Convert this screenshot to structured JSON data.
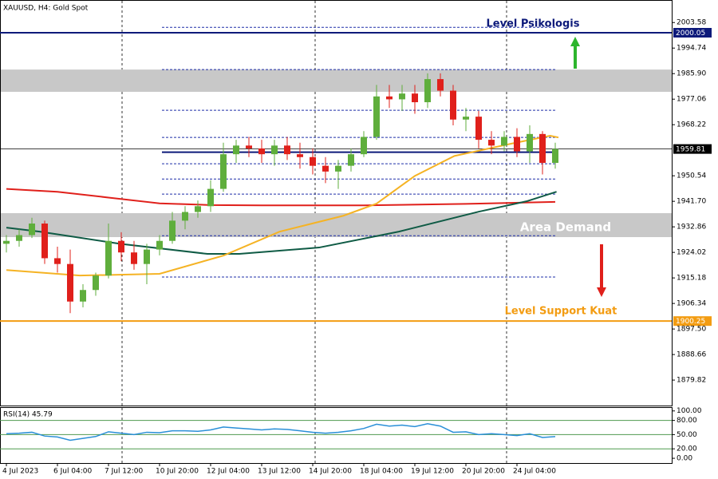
{
  "chart_data": [
    {
      "type": "candlestick",
      "title": "XAUUSD, H4:  Gold Spot",
      "categories": [
        "4 Jul 2023",
        null,
        null,
        null,
        "6 Jul 04:00",
        null,
        null,
        null,
        "7 Jul 12:00",
        null,
        null,
        null,
        "10 Jul 20:00",
        null,
        null,
        null,
        "12 Jul 04:00",
        null,
        null,
        null,
        "13 Jul 12:00",
        null,
        null,
        null,
        "14 Jul 20:00",
        null,
        null,
        null,
        "18 Jul 04:00",
        null,
        null,
        null,
        "19 Jul 12:00",
        null,
        null,
        null,
        "20 Jul 20:00",
        null,
        null,
        null,
        "24 Jul 04:00",
        null,
        null,
        null
      ],
      "open": [
        1927,
        1928,
        1930,
        1934,
        1922,
        1920,
        1907,
        1911,
        1916,
        1928,
        1924,
        1920,
        1925,
        1928,
        1935,
        1938,
        1940,
        1946,
        1958,
        1961,
        1960,
        1958,
        1961,
        1958,
        1957,
        1954,
        1952,
        1954,
        1958,
        1964,
        1978,
        1977,
        1979,
        1976,
        1984,
        1980,
        1970,
        1971,
        1963,
        1961,
        1964,
        1959,
        1965,
        1955
      ],
      "high": [
        1930,
        1932,
        1936,
        1935,
        1926,
        1925,
        1913,
        1917,
        1934,
        1931,
        1928,
        1927,
        1930,
        1938,
        1940,
        1942,
        1949,
        1962,
        1963,
        1964,
        1963,
        1963,
        1964,
        1962,
        1960,
        1957,
        1956,
        1960,
        1966,
        1982,
        1982,
        1982,
        1982,
        1986,
        1986,
        1982,
        1974,
        1973,
        1966,
        1966,
        1967,
        1968,
        1966,
        1962
      ],
      "low": [
        1924,
        1926,
        1929,
        1920,
        1917,
        1903,
        1905,
        1909,
        1915,
        1921,
        1918,
        1913,
        1923,
        1927,
        1932,
        1936,
        1938,
        1945,
        1955,
        1957,
        1955,
        1954,
        1956,
        1953,
        1951,
        1948,
        1946,
        1952,
        1957,
        1963,
        1974,
        1973,
        1972,
        1974,
        1978,
        1968,
        1966,
        1960,
        1958,
        1959,
        1957,
        1955,
        1951,
        1953
      ],
      "close": [
        1928,
        1930,
        1934,
        1922,
        1920,
        1907,
        1911,
        1916,
        1928,
        1924,
        1920,
        1925,
        1928,
        1935,
        1938,
        1940,
        1946,
        1958,
        1961,
        1960,
        1958,
        1961,
        1958,
        1957,
        1954,
        1952,
        1954,
        1958,
        1964,
        1978,
        1977,
        1979,
        1976,
        1984,
        1980,
        1970,
        1971,
        1963,
        1961,
        1964,
        1959,
        1965,
        1955,
        1959.81
      ],
      "up_color": "#5fae3c",
      "down_color": "#e0201b",
      "series": [
        {
          "color": "#e0201b",
          "x": [
            0,
            4,
            8,
            12,
            16,
            20,
            28,
            36,
            43
          ],
          "values": [
            1946,
            1945,
            1943,
            1941,
            1940.4,
            1940.3,
            1940.3,
            1940.8,
            1941.5
          ]
        },
        {
          "color": "#0f5b45",
          "x": [
            0,
            2.6,
            8.9,
            15.75,
            18.25,
            24.5,
            30.75,
            37,
            40.75,
            43.1
          ],
          "values": [
            1932.6,
            1931.2,
            1927,
            1923.5,
            1923.5,
            1925.7,
            1931.2,
            1938.1,
            1941.7,
            1945
          ]
        },
        {
          "color": "#f5b324",
          "x": [
            0,
            5.75,
            12,
            17,
            21.4,
            26.4,
            29,
            32,
            35.1,
            39.5,
            42.6,
            43.25
          ],
          "values": [
            1917.9,
            1916,
            1916.6,
            1922.9,
            1931.2,
            1936.7,
            1940.9,
            1950.5,
            1957.4,
            1961.6,
            1964.4,
            1963.8
          ]
        }
      ],
      "zones": [
        {
          "from": 1979.6,
          "to": 1987.3,
          "color": "#c8c8c8"
        },
        {
          "name": "Area Demand",
          "from": 1929.3,
          "to": 1937.6,
          "color": "#c8c8c8"
        }
      ],
      "dotted_levels": [
        2001.9,
        1987.3,
        1973.2,
        1963.8,
        1954.7,
        1949.4,
        1944.2,
        1929.8,
        1915.5
      ],
      "midline": {
        "value": 1958.7,
        "color": "#0d1a7a"
      },
      "levels": [
        {
          "name": "Level Psikologis",
          "value": 2000.05,
          "color": "#0d1a7a"
        },
        {
          "name": "Level Support Kuat",
          "value": 1900.25,
          "color": "#f39c12"
        }
      ],
      "current_price": 1959.81,
      "ylim": [
        1871,
        2010
      ],
      "yticks": [
        2003.58,
        1994.74,
        {
          "value": 1985.9,
          "label": "1985.90"
        },
        1977.06,
        1968.22,
        1950.54,
        {
          "value": 1941.7,
          "label": "1941.70"
        },
        1932.86,
        1924.02,
        1915.18,
        1906.34,
        {
          "value": 1897.5,
          "label": "1897.50"
        },
        1888.66,
        1879.82
      ]
    },
    {
      "type": "line",
      "title": "RSI(14) 45.79",
      "color": "#2a8fd8",
      "values": [
        52,
        53,
        55,
        47,
        45,
        38,
        42,
        46,
        56,
        53,
        50,
        55,
        54,
        58,
        58,
        57,
        60,
        66,
        64,
        62,
        60,
        62,
        61,
        58,
        55,
        53,
        55,
        58,
        63,
        72,
        68,
        70,
        67,
        73,
        68,
        55,
        56,
        50,
        52,
        50,
        48,
        52,
        44,
        45.79
      ],
      "levels": [
        80,
        50,
        20
      ],
      "level_color": "#4f9a4f",
      "ylim": [
        -10,
        108
      ],
      "yticks": [
        {
          "value": 100,
          "label": "100.00"
        },
        {
          "value": 80,
          "label": "80.00"
        },
        {
          "value": 50,
          "label": "50.00"
        },
        {
          "value": 20,
          "label": "20.00"
        },
        {
          "value": 0,
          "label": "0.00"
        }
      ]
    }
  ]
}
